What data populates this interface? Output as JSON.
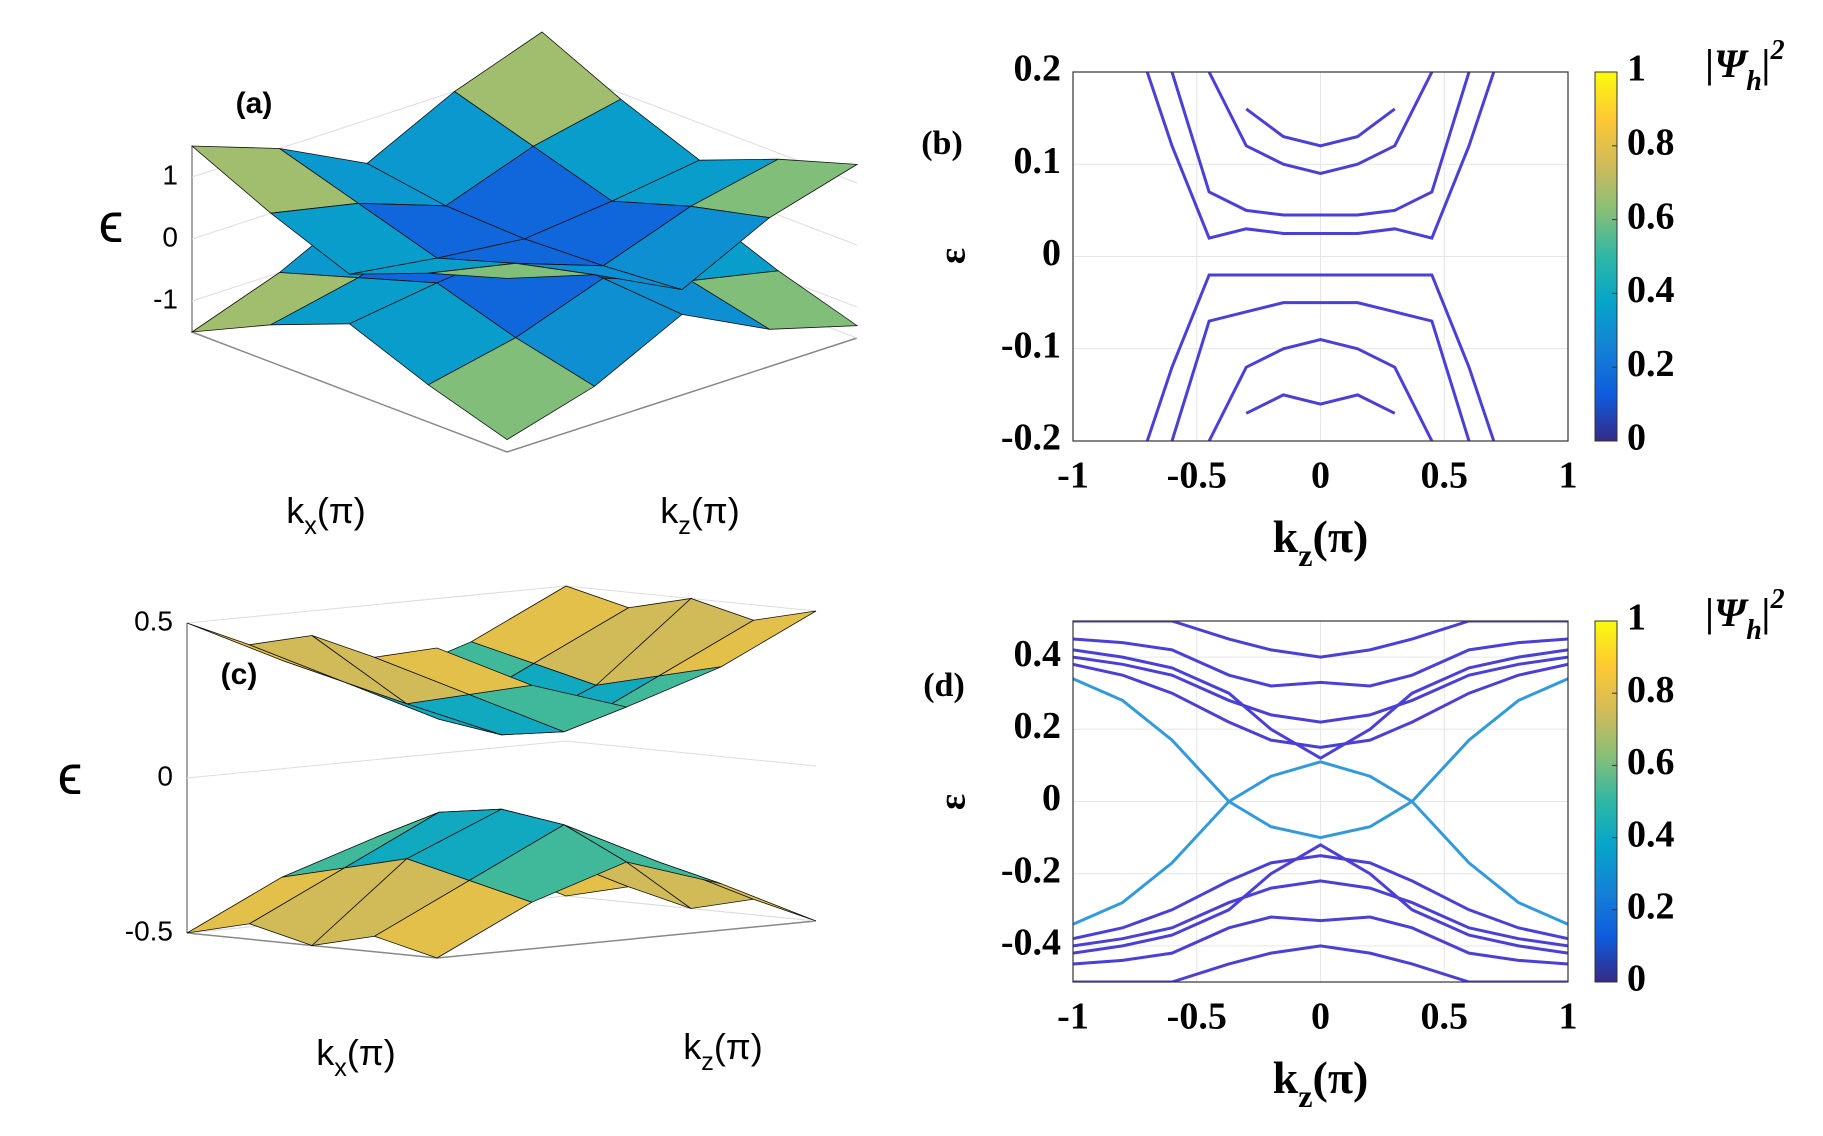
{
  "chart_data": [
    {
      "type": "surface3d",
      "panel_label": "(a)",
      "zlabel": "ϵ",
      "xlabel": [
        "k",
        "x",
        "(π)"
      ],
      "ylabel": [
        "k",
        "z",
        "(π)"
      ],
      "zlim": [
        -1.5,
        1.5
      ],
      "zticks": [
        -1,
        0,
        1
      ],
      "colormap": [
        "#352a87",
        "#0f5cdd",
        "#1481d6",
        "#06a4ca",
        "#2eb7a4",
        "#87bf77",
        "#d1bb59",
        "#fec832",
        "#f9fb0e"
      ],
      "surfaces": [
        {
          "z": [
            [
              -1.3,
              -0.9,
              -0.2,
              -0.9,
              -1.3
            ],
            [
              -0.9,
              -0.6,
              -0.1,
              -0.6,
              -0.9
            ],
            [
              -0.4,
              -0.2,
              -0.05,
              -0.2,
              -0.4
            ],
            [
              -0.9,
              -0.6,
              -0.1,
              -0.6,
              -0.9
            ],
            [
              -1.5,
              -1.0,
              -0.3,
              -1.0,
              -1.5
            ]
          ]
        },
        {
          "z": [
            [
              1.3,
              0.9,
              0.2,
              0.9,
              1.3
            ],
            [
              0.9,
              0.6,
              0.1,
              0.6,
              0.9
            ],
            [
              0.4,
              0.2,
              0.05,
              0.2,
              0.4
            ],
            [
              0.9,
              0.6,
              0.1,
              0.6,
              0.9
            ],
            [
              1.5,
              1.0,
              0.3,
              1.0,
              1.5
            ]
          ]
        }
      ]
    },
    {
      "type": "line",
      "panel_label": "(b)",
      "ylabel": "ε",
      "xlabel": [
        "k",
        "z",
        "(π)"
      ],
      "xlim": [
        -1,
        1
      ],
      "xticks": [
        -1,
        -0.5,
        0,
        0.5,
        1
      ],
      "ylim": [
        -0.2,
        0.2
      ],
      "yticks": [
        -0.2,
        -0.1,
        0,
        0.1,
        0.2
      ],
      "grid": true,
      "x": [
        -0.7,
        -0.6,
        -0.45,
        -0.3,
        -0.15,
        0,
        0.15,
        0.3,
        0.45,
        0.6,
        0.7
      ],
      "series": [
        {
          "color": "#4a3fd6",
          "values": [
            0.2,
            0.12,
            0.02,
            0.03,
            0.025,
            0.025,
            0.025,
            0.03,
            0.02,
            0.12,
            0.2
          ]
        },
        {
          "color": "#4a3fd6",
          "values": [
            null,
            0.2,
            0.07,
            0.05,
            0.045,
            0.045,
            0.045,
            0.05,
            0.07,
            0.2,
            null
          ]
        },
        {
          "color": "#4a3fd6",
          "values": [
            null,
            null,
            0.2,
            0.12,
            0.1,
            0.09,
            0.1,
            0.12,
            0.2,
            null,
            null
          ]
        },
        {
          "color": "#4a3fd6",
          "values": [
            null,
            null,
            null,
            0.16,
            0.13,
            0.12,
            0.13,
            0.16,
            null,
            null,
            null
          ]
        },
        {
          "color": "#4a3fd6",
          "values": [
            -0.2,
            -0.12,
            -0.02,
            -0.02,
            -0.02,
            -0.02,
            -0.02,
            -0.02,
            -0.02,
            -0.12,
            -0.2
          ]
        },
        {
          "color": "#4a3fd6",
          "values": [
            null,
            -0.2,
            -0.07,
            -0.06,
            -0.05,
            -0.05,
            -0.05,
            -0.06,
            -0.07,
            -0.2,
            null
          ]
        },
        {
          "color": "#4a3fd6",
          "values": [
            null,
            null,
            -0.2,
            -0.12,
            -0.1,
            -0.09,
            -0.1,
            -0.12,
            -0.2,
            null,
            null
          ]
        },
        {
          "color": "#4a3fd6",
          "values": [
            null,
            null,
            null,
            -0.17,
            -0.15,
            -0.16,
            -0.15,
            -0.17,
            null,
            null,
            null
          ]
        }
      ],
      "colorbar": {
        "label": [
          "|Ψ",
          "h",
          "|",
          "2"
        ],
        "lim": [
          0,
          1
        ],
        "ticks": [
          0,
          0.2,
          0.4,
          0.6,
          0.8,
          1
        ]
      }
    },
    {
      "type": "surface3d",
      "panel_label": "(c)",
      "zlabel": "ϵ",
      "xlabel": [
        "k",
        "x",
        "(π)"
      ],
      "ylabel": [
        "k",
        "z",
        "(π)"
      ],
      "zlim": [
        -0.5,
        0.5
      ],
      "zticks": [
        -0.5,
        0,
        0.5
      ],
      "colormap": [
        "#352a87",
        "#0f5cdd",
        "#1481d6",
        "#06a4ca",
        "#2eb7a4",
        "#87bf77",
        "#d1bb59",
        "#fec832",
        "#f9fb0e"
      ],
      "surfaces": [
        {
          "z": [
            [
              -0.5,
              -0.35,
              -0.25,
              -0.35,
              -0.5
            ],
            [
              -0.45,
              -0.3,
              -0.15,
              -0.3,
              -0.45
            ],
            [
              -0.5,
              -0.25,
              -0.12,
              -0.25,
              -0.5
            ],
            [
              -0.45,
              -0.3,
              -0.15,
              -0.3,
              -0.45
            ],
            [
              -0.5,
              -0.35,
              -0.25,
              -0.35,
              -0.5
            ]
          ]
        },
        {
          "z": [
            [
              0.5,
              0.35,
              0.25,
              0.35,
              0.5
            ],
            [
              0.45,
              0.3,
              0.15,
              0.3,
              0.45
            ],
            [
              0.5,
              0.25,
              0.12,
              0.25,
              0.5
            ],
            [
              0.45,
              0.3,
              0.15,
              0.3,
              0.45
            ],
            [
              0.5,
              0.35,
              0.25,
              0.35,
              0.5
            ]
          ]
        }
      ]
    },
    {
      "type": "line",
      "panel_label": "(d)",
      "ylabel": "ε",
      "xlabel": [
        "k",
        "z",
        "(π)"
      ],
      "xlim": [
        -1,
        1
      ],
      "xticks": [
        -1,
        -0.5,
        0,
        0.5,
        1
      ],
      "ylim": [
        -0.5,
        0.5
      ],
      "yticks": [
        -0.4,
        -0.2,
        0,
        0.2,
        0.4
      ],
      "grid": true,
      "x": [
        -1,
        -0.8,
        -0.6,
        -0.37,
        -0.2,
        0,
        0.2,
        0.37,
        0.6,
        0.8,
        1
      ],
      "series": [
        {
          "color": "#4a3fd6",
          "values": [
            0.5,
            0.5,
            0.5,
            0.45,
            0.42,
            0.4,
            0.42,
            0.45,
            0.5,
            0.5,
            0.5
          ]
        },
        {
          "color": "#4a3fd6",
          "values": [
            0.45,
            0.44,
            0.42,
            0.35,
            0.32,
            0.33,
            0.32,
            0.35,
            0.42,
            0.44,
            0.45
          ]
        },
        {
          "color": "#4a3fd6",
          "values": [
            0.4,
            0.38,
            0.35,
            0.28,
            0.24,
            0.22,
            0.24,
            0.28,
            0.35,
            0.38,
            0.4
          ]
        },
        {
          "color": "#4a3fd6",
          "values": [
            0.38,
            0.35,
            0.3,
            0.22,
            0.17,
            0.15,
            0.17,
            0.22,
            0.3,
            0.35,
            0.38
          ]
        },
        {
          "color": "#4a3fd6",
          "values": [
            0.42,
            0.4,
            0.37,
            0.3,
            0.2,
            0.12,
            0.2,
            0.3,
            0.37,
            0.4,
            0.42
          ]
        },
        {
          "color": "#4a3fd6",
          "values": [
            -0.5,
            -0.5,
            -0.5,
            -0.45,
            -0.42,
            -0.4,
            -0.42,
            -0.45,
            -0.5,
            -0.5,
            -0.5
          ]
        },
        {
          "color": "#4a3fd6",
          "values": [
            -0.45,
            -0.44,
            -0.42,
            -0.35,
            -0.32,
            -0.33,
            -0.32,
            -0.35,
            -0.42,
            -0.44,
            -0.45
          ]
        },
        {
          "color": "#4a3fd6",
          "values": [
            -0.4,
            -0.38,
            -0.35,
            -0.28,
            -0.24,
            -0.22,
            -0.24,
            -0.28,
            -0.35,
            -0.38,
            -0.4
          ]
        },
        {
          "color": "#4a3fd6",
          "values": [
            -0.38,
            -0.35,
            -0.3,
            -0.22,
            -0.17,
            -0.15,
            -0.17,
            -0.22,
            -0.3,
            -0.35,
            -0.38
          ]
        },
        {
          "color": "#4a3fd6",
          "values": [
            -0.42,
            -0.4,
            -0.37,
            -0.3,
            -0.2,
            -0.12,
            -0.2,
            -0.3,
            -0.37,
            -0.4,
            -0.42
          ]
        },
        {
          "color": "#3399dd",
          "values": [
            0.34,
            0.28,
            0.17,
            0,
            -0.07,
            -0.1,
            -0.07,
            0,
            0.17,
            0.28,
            0.34
          ]
        },
        {
          "color": "#3399dd",
          "values": [
            -0.34,
            -0.28,
            -0.17,
            0,
            0.07,
            0.11,
            0.07,
            0,
            -0.17,
            -0.28,
            -0.34
          ]
        }
      ],
      "colorbar": {
        "label": [
          "|Ψ",
          "h",
          "|",
          "2"
        ],
        "lim": [
          0,
          1
        ],
        "ticks": [
          0,
          0.2,
          0.4,
          0.6,
          0.8,
          1
        ]
      }
    }
  ]
}
